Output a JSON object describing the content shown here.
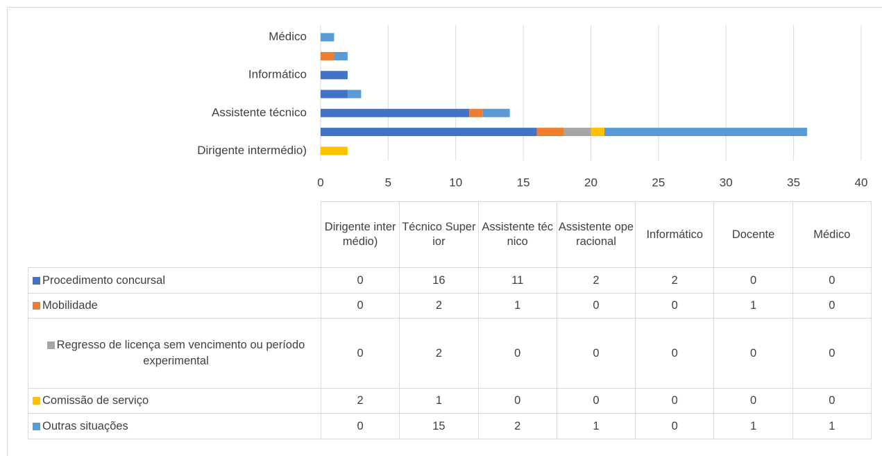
{
  "chart_data": {
    "type": "bar",
    "orientation": "horizontal",
    "stacked": true,
    "categories": [
      "Dirigente intermédio)",
      "Técnico Superior",
      "Assistente técnico",
      "Assistente operacional",
      "Informático",
      "Docente",
      "Médico"
    ],
    "series": [
      {
        "name": "Procedimento concursal",
        "color": "#4472c4",
        "values": [
          0,
          16,
          11,
          2,
          2,
          0,
          0
        ]
      },
      {
        "name": "Mobilidade",
        "color": "#ed7d31",
        "values": [
          0,
          2,
          1,
          0,
          0,
          1,
          0
        ]
      },
      {
        "name": "Regresso de licença sem vencimento ou período experimental",
        "color": "#a5a5a5",
        "values": [
          0,
          2,
          0,
          0,
          0,
          0,
          0
        ]
      },
      {
        "name": "Comissão de serviço",
        "color": "#ffc000",
        "values": [
          2,
          1,
          0,
          0,
          0,
          0,
          0
        ]
      },
      {
        "name": "Outras situações",
        "color": "#5b9bd5",
        "values": [
          0,
          15,
          2,
          1,
          0,
          1,
          1
        ]
      }
    ],
    "xlim": [
      0,
      40
    ],
    "xticks": [
      0,
      5,
      10,
      15,
      20,
      25,
      30,
      35,
      40
    ],
    "grid": true
  }
}
